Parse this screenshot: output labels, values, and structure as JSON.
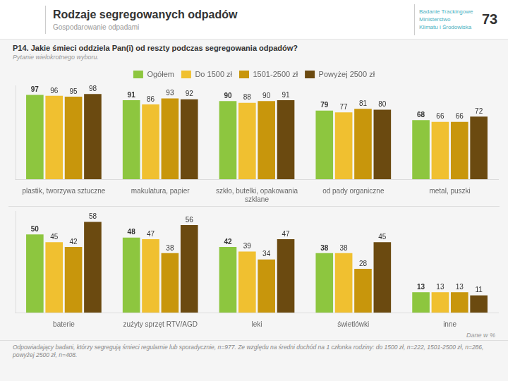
{
  "chart_data": [
    {
      "type": "bar",
      "title": "Rodzaje segregowanych odpadów",
      "subtitle": "Gospodarowanie odpadami",
      "annotations": [
        "P14. Jakie śmieci oddziela Pan(i) od reszty podczas segregowania odpadów?",
        "Pytanie wielokrotnego wyboru.",
        "Badanie Trackingowe\nMinisterstwo\nKlimatu i Środowiska",
        "73"
      ],
      "categories": [
        "plastik, tworzywa sztuczne",
        "makulatura, papier",
        "szkło, butelki, opakowania\nszklane",
        "od pady organiczne",
        "metal, puszki"
      ],
      "series": [
        {
          "name": "Ogółem",
          "color": "#8dc63f",
          "values": [
            97,
            91,
            90,
            79,
            68
          ]
        },
        {
          "name": "Do 1500 zł",
          "color": "#f0c030",
          "values": [
            96,
            86,
            88,
            77,
            66
          ]
        },
        {
          "name": "1501-2500 zł",
          "color": "#c8960c",
          "values": [
            95,
            93,
            90,
            81,
            66
          ]
        },
        {
          "name": "Powyżej 2500 zł",
          "color": "#6b4a10",
          "values": [
            98,
            92,
            91,
            80,
            72
          ]
        }
      ],
      "ylim": [
        0,
        108
      ],
      "grid": false,
      "legend": "top",
      "data_labels": true,
      "tick_labels": "x"
    },
    {
      "type": "bar",
      "annotations": [
        "Dane w %",
        "Odpowiadający badani, którzy segregują śmieci regularnie lub sporadycznie, n=977. Ze względu na średni dochód na 1 członka rodziny: do 1500 zł, n=222, 1501-2500 zł, n=286, powyżej 2500 zł, n=408."
      ],
      "categories": [
        "baterie",
        "zużyty sprzęt RTV/AGD",
        "leki",
        "świetlówki",
        "inne"
      ],
      "series": [
        {
          "name": "Ogółem",
          "color": "#8dc63f",
          "values": [
            50,
            48,
            42,
            38,
            13
          ]
        },
        {
          "name": "Do 1500 zł",
          "color": "#f0c030",
          "values": [
            45,
            47,
            39,
            38,
            13
          ]
        },
        {
          "name": "1501-2500 zł",
          "color": "#c8960c",
          "values": [
            42,
            38,
            34,
            28,
            13
          ]
        },
        {
          "name": "Powyżej 2500 zł",
          "color": "#6b4a10",
          "values": [
            58,
            56,
            47,
            45,
            11
          ]
        }
      ],
      "ylim": [
        0,
        65
      ],
      "grid": false,
      "data_labels": true,
      "tick_labels": "x"
    }
  ]
}
